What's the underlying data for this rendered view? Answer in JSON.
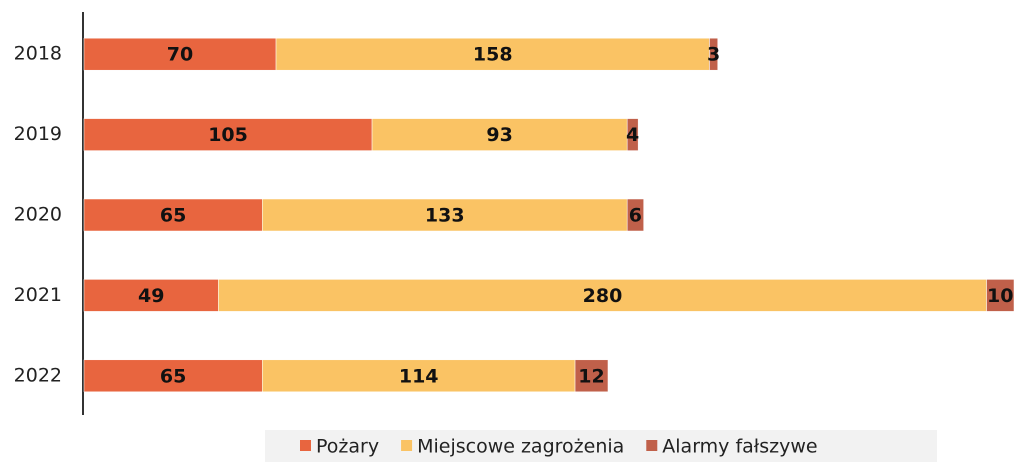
{
  "chart_data": {
    "type": "stacked-bar-horizontal",
    "categories": [
      "2018",
      "2019",
      "2020",
      "2021",
      "2022"
    ],
    "series": [
      {
        "name": "Pożary",
        "color": "#e8653f",
        "values": [
          70,
          105,
          65,
          49,
          65
        ]
      },
      {
        "name": "Miejscowe zagrożenia",
        "color": "#fac364",
        "values": [
          158,
          93,
          133,
          280,
          114
        ]
      },
      {
        "name": "Alarmy fałszywe",
        "color": "#c0604a",
        "values": [
          3,
          4,
          6,
          10,
          12
        ]
      }
    ],
    "legend": "bottom"
  }
}
